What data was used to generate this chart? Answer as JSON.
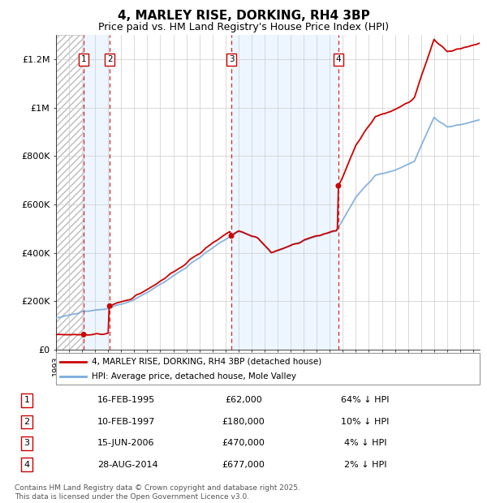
{
  "title": "4, MARLEY RISE, DORKING, RH4 3BP",
  "subtitle": "Price paid vs. HM Land Registry's House Price Index (HPI)",
  "ylabel_ticks": [
    "£0",
    "£200K",
    "£400K",
    "£600K",
    "£800K",
    "£1M",
    "£1.2M"
  ],
  "ytick_values": [
    0,
    200000,
    400000,
    600000,
    800000,
    1000000,
    1200000
  ],
  "ylim": [
    0,
    1300000
  ],
  "xlim_start": 1993.0,
  "xlim_end": 2025.5,
  "transactions": [
    {
      "num": 1,
      "date": "16-FEB-1995",
      "date_val": 1995.12,
      "price": 62000,
      "price_str": "£62,000",
      "pct_str": "64% ↓ HPI"
    },
    {
      "num": 2,
      "date": "10-FEB-1997",
      "date_val": 1997.12,
      "price": 180000,
      "price_str": "£180,000",
      "pct_str": "10% ↓ HPI"
    },
    {
      "num": 3,
      "date": "15-JUN-2006",
      "date_val": 2006.45,
      "price": 470000,
      "price_str": "£470,000",
      "pct_str": "4% ↓ HPI"
    },
    {
      "num": 4,
      "date": "28-AUG-2014",
      "date_val": 2014.66,
      "price": 677000,
      "price_str": "£677,000",
      "pct_str": "2% ↓ HPI"
    }
  ],
  "legend_entries": [
    "4, MARLEY RISE, DORKING, RH4 3BP (detached house)",
    "HPI: Average price, detached house, Mole Valley"
  ],
  "line_color_price": "#cc0000",
  "line_color_hpi": "#7aabdb",
  "footer_text": "Contains HM Land Registry data © Crown copyright and database right 2025.\nThis data is licensed under the Open Government Licence v3.0.",
  "background_color": "#ffffff"
}
